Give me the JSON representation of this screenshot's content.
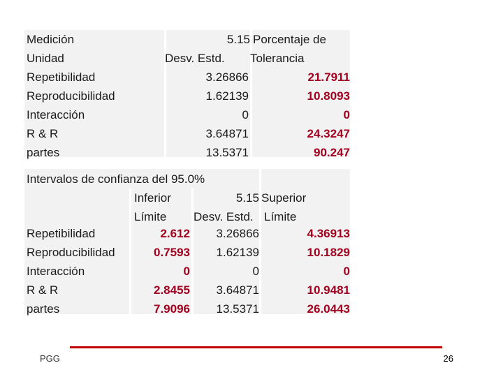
{
  "table1": {
    "header": {
      "r1": {
        "c0": "Medición",
        "c1": "5.15",
        "c2": "Porcentaje de"
      },
      "r2": {
        "c0": "Unidad",
        "c1": "Desv. Estd.",
        "c2": "Tolerancia"
      }
    },
    "rows": [
      {
        "label": "Repetibilidad",
        "std": "3.26866",
        "pct": "21.7911"
      },
      {
        "label": "Reproducibilidad",
        "std": "1.62139",
        "pct": "10.8093"
      },
      {
        "label": "Interacción",
        "std": "0",
        "pct": "0"
      },
      {
        "label": "R & R",
        "std": "3.64871",
        "pct": "24.3247"
      },
      {
        "label": "partes",
        "std": "13.5371",
        "pct": "90.247"
      }
    ]
  },
  "table2": {
    "title": "Intervalos de confianza del 95.0%",
    "header": {
      "r1": {
        "c1": "Inferior",
        "c2": "5.15",
        "c3": "Superior"
      },
      "r2": {
        "c1": "Límite",
        "c2": "Desv. Estd.",
        "c3": "Límite"
      }
    },
    "rows": [
      {
        "label": "Repetibilidad",
        "lower": "2.612",
        "std": "3.26866",
        "upper": "4.36913"
      },
      {
        "label": "Reproducibilidad",
        "lower": "0.7593",
        "std": "1.62139",
        "upper": "10.1829"
      },
      {
        "label": "Interacción",
        "lower": "0",
        "std": "0",
        "upper": "0"
      },
      {
        "label": "R & R",
        "lower": "2.8455",
        "std": "3.64871",
        "upper": "10.9481"
      },
      {
        "label": "partes",
        "lower": "7.9096",
        "std": "13.5371",
        "upper": "26.0443"
      }
    ]
  },
  "footer": {
    "author": "PGG",
    "page_number": "26"
  },
  "colors": {
    "highlight": "#a3001f",
    "rule": "#c00000",
    "cell_shading": "#f2f2f2"
  }
}
